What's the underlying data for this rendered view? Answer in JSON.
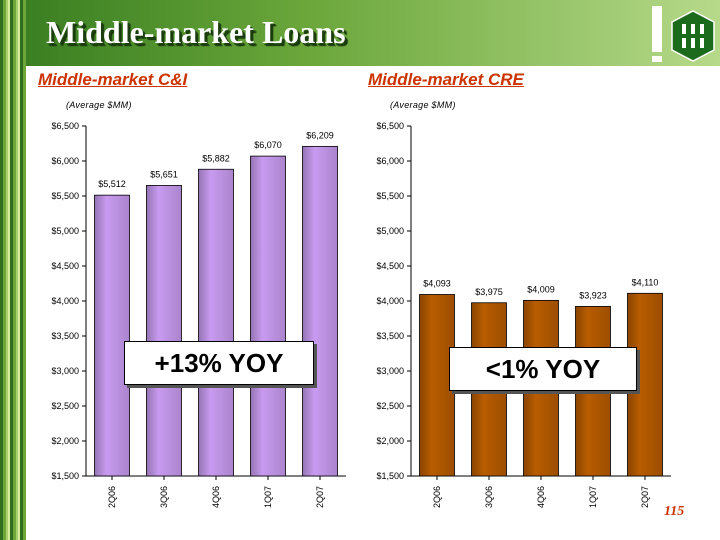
{
  "slide": {
    "title": "Middle-market Loans",
    "page_number": "115"
  },
  "colors": {
    "cni_bar": "#c89bf0",
    "cre_bar": "#b85c00",
    "title_text": "#ffffff",
    "subtitle_text": "#cc3300",
    "header_green": "#4a8c2a"
  },
  "icons": [
    "exclamation-logo-icon",
    "bank-logo-icon"
  ],
  "chart_data": [
    {
      "type": "bar",
      "title": "Middle-market C&I",
      "unit_note": "(Average $MM)",
      "categories": [
        "2Q06",
        "3Q06",
        "4Q06",
        "1Q07",
        "2Q07"
      ],
      "values": [
        5512,
        5651,
        5882,
        6070,
        6209
      ],
      "value_labels": [
        "$5,512",
        "$5,651",
        "$5,882",
        "$6,070",
        "$6,209"
      ],
      "ylim": [
        1500,
        6500
      ],
      "yticks": [
        1500,
        2000,
        2500,
        3000,
        3500,
        4000,
        4500,
        5000,
        5500,
        6000,
        6500
      ],
      "ytick_labels": [
        "$1,500",
        "$2,000",
        "$2,500",
        "$3,000",
        "$3,500",
        "$4,000",
        "$4,500",
        "$5,000",
        "$5,500",
        "$6,000",
        "$6,500"
      ],
      "callout": "+13% YOY",
      "grid": false
    },
    {
      "type": "bar",
      "title": "Middle-market CRE",
      "unit_note": "(Average $MM)",
      "categories": [
        "2Q06",
        "3Q06",
        "4Q06",
        "1Q07",
        "2Q07"
      ],
      "values": [
        4093,
        3975,
        4009,
        3923,
        4110
      ],
      "value_labels": [
        "$4,093",
        "$3,975",
        "$4,009",
        "$3,923",
        "$4,110"
      ],
      "ylim": [
        1500,
        6500
      ],
      "yticks": [
        1500,
        2000,
        2500,
        3000,
        3500,
        4000,
        4500,
        5000,
        5500,
        6000,
        6500
      ],
      "ytick_labels": [
        "$1,500",
        "$2,000",
        "$2,500",
        "$3,000",
        "$3,500",
        "$4,000",
        "$4,500",
        "$5,000",
        "$5,500",
        "$6,000",
        "$6,500"
      ],
      "callout": "<1% YOY",
      "grid": false
    }
  ]
}
